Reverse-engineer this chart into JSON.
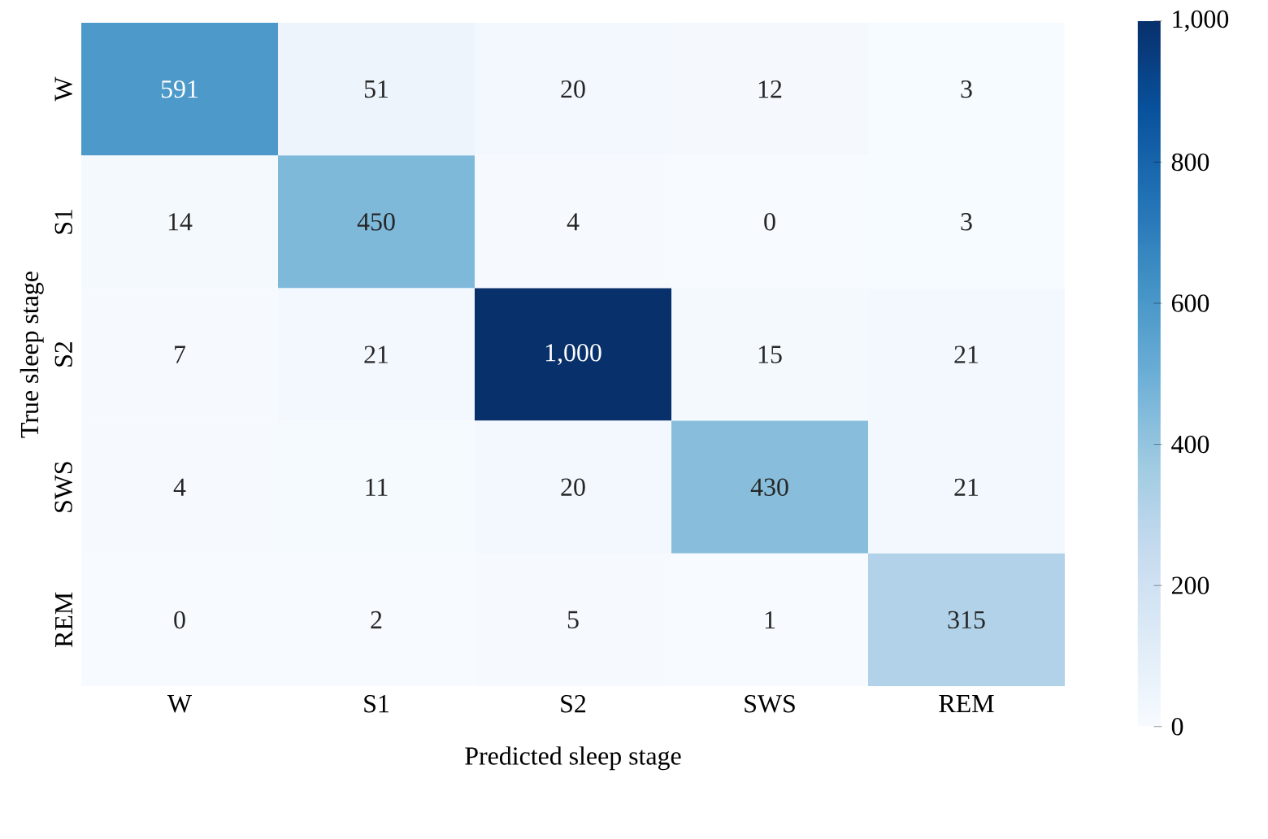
{
  "chart_data": {
    "type": "heatmap",
    "xlabel": "Predicted sleep stage",
    "ylabel": "True sleep stage",
    "categories": [
      "W",
      "S1",
      "S2",
      "SWS",
      "REM"
    ],
    "y_categories": [
      "W",
      "S1",
      "S2",
      "SWS",
      "REM"
    ],
    "cells": [
      [
        591,
        51,
        20,
        12,
        3
      ],
      [
        14,
        450,
        4,
        0,
        3
      ],
      [
        7,
        21,
        1000,
        15,
        21
      ],
      [
        4,
        11,
        20,
        430,
        21
      ],
      [
        0,
        2,
        5,
        1,
        315
      ]
    ],
    "cell_labels": [
      [
        "591",
        "51",
        "20",
        "12",
        "3"
      ],
      [
        "14",
        "450",
        "4",
        "0",
        "3"
      ],
      [
        "7",
        "21",
        "1,000",
        "15",
        "21"
      ],
      [
        "4",
        "11",
        "20",
        "430",
        "21"
      ],
      [
        "0",
        "2",
        "5",
        "1",
        "315"
      ]
    ],
    "clim": [
      0,
      1000
    ],
    "cticks": [
      0,
      200,
      400,
      600,
      800,
      {
        "value": 1000,
        "label": "1,000"
      }
    ]
  }
}
